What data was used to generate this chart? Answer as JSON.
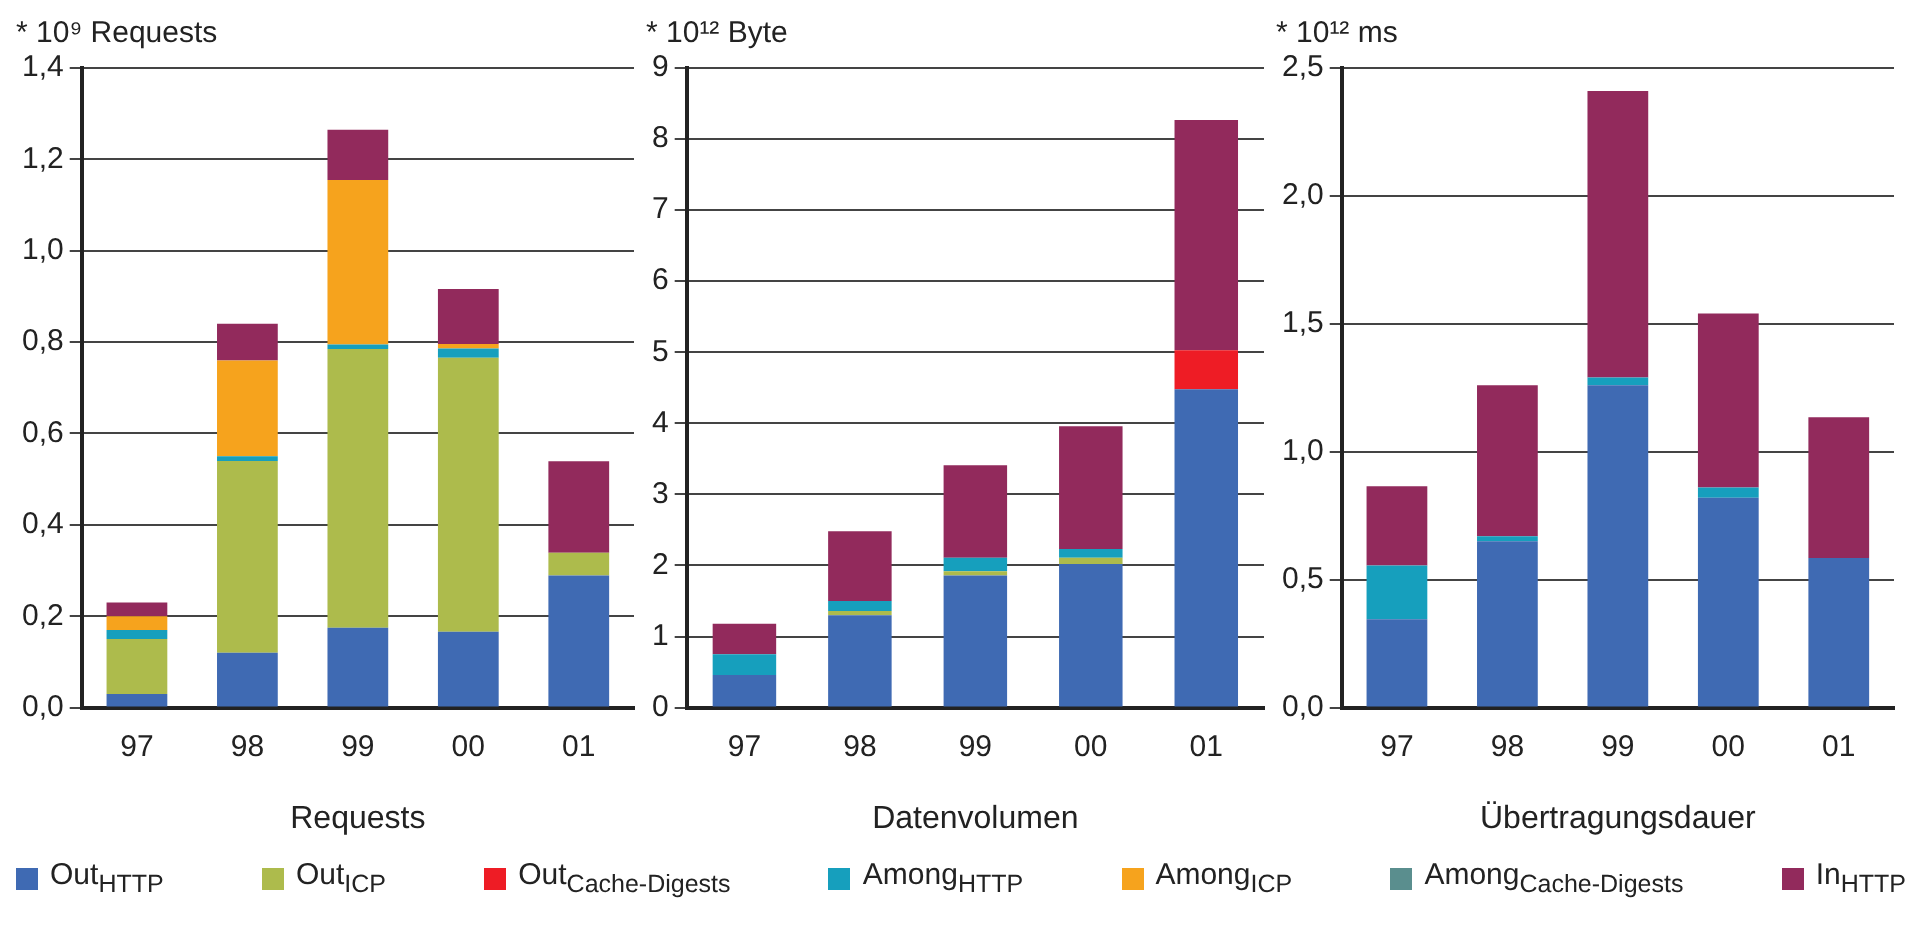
{
  "chart_data": [
    {
      "type": "bar",
      "ylabel": "* 10⁹ Requests",
      "xlabel": "Requests",
      "categories": [
        "97",
        "98",
        "99",
        "00",
        "01"
      ],
      "stacked": true,
      "grid": "y",
      "legend": "bottom",
      "ylim": [
        0,
        1.4
      ],
      "yticks": [
        {
          "value": 0,
          "label": "0,0"
        },
        {
          "value": 0.2,
          "label": "0,2"
        },
        {
          "value": 0.4,
          "label": "0,4"
        },
        {
          "value": 0.6,
          "label": "0,6"
        },
        {
          "value": 0.8,
          "label": "0,8"
        },
        {
          "value": 1.0,
          "label": "1,0"
        },
        {
          "value": 1.2,
          "label": "1,2"
        },
        {
          "value": 1.4,
          "label": "1,4"
        }
      ],
      "series": [
        {
          "name": "Out$_{HTTP}$",
          "color": "#3f6ab3",
          "values": [
            0.03,
            0.12,
            0.175,
            0.166,
            0.289
          ]
        },
        {
          "name": "Out$_{ICP}$",
          "color": "#adbb4c",
          "values": [
            0.12,
            0.42,
            0.61,
            0.6,
            0.05
          ]
        },
        {
          "name": "Out$_{Cache-Digests}$",
          "color": "#ee1c25",
          "values": [
            null,
            null,
            null,
            null,
            null
          ]
        },
        {
          "name": "Among$_{HTTP}$",
          "color": "#169fbd",
          "values": [
            0.02,
            0.01,
            0.01,
            0.02,
            null
          ]
        },
        {
          "name": "Among$_{ICP}$",
          "color": "#f6a31d",
          "values": [
            0.03,
            0.21,
            0.36,
            0.01,
            null
          ]
        },
        {
          "name": "Among$_{Cache-Digests}$",
          "color": "#5a8e8e",
          "values": [
            null,
            null,
            null,
            null,
            null
          ]
        },
        {
          "name": "In$_{HTTP}$",
          "color": "#922a5c",
          "values": [
            0.03,
            0.08,
            0.11,
            0.12,
            0.2
          ]
        }
      ]
    },
    {
      "type": "bar",
      "ylabel": "* 10¹² Byte",
      "xlabel": "Datenvolumen",
      "categories": [
        "97",
        "98",
        "99",
        "00",
        "01"
      ],
      "stacked": true,
      "grid": "y",
      "ylim": [
        0,
        9
      ],
      "yticks": [
        0,
        1,
        2,
        3,
        4,
        5,
        6,
        7,
        8,
        9
      ],
      "series": [
        {
          "color": "#3f6ab3",
          "values": [
            0.46,
            1.3,
            1.86,
            2.02,
            4.48
          ]
        },
        {
          "color": "#adbb4c",
          "values": [
            null,
            0.06,
            0.06,
            0.09,
            null
          ]
        },
        {
          "color": "#ee1c25",
          "values": [
            null,
            null,
            null,
            null,
            0.55
          ]
        },
        {
          "color": "#169fbd",
          "values": [
            0.29,
            0.14,
            0.19,
            0.12,
            null
          ]
        },
        {
          "color": "#922a5c",
          "values": [
            0.43,
            0.98,
            1.3,
            1.73,
            3.24
          ]
        }
      ]
    },
    {
      "type": "bar",
      "ylabel": "* 10¹² ms",
      "xlabel": "Übertragungsdauer",
      "categories": [
        "97",
        "98",
        "99",
        "00",
        "01"
      ],
      "stacked": true,
      "grid": "y",
      "ylim": [
        0,
        2.5
      ],
      "yticks": [
        {
          "value": 0,
          "label": "0,0"
        },
        {
          "value": 0.5,
          "label": "0,5"
        },
        {
          "value": 1.0,
          "label": "1,0"
        },
        {
          "value": 1.5,
          "label": "1,5"
        },
        {
          "value": 2.0,
          "label": "2,0"
        },
        {
          "value": 2.5,
          "label": "2,5"
        }
      ],
      "series": [
        {
          "color": "#3f6ab3",
          "values": [
            0.345,
            0.65,
            1.26,
            0.82,
            0.585
          ]
        },
        {
          "color": "#169fbd",
          "values": [
            0.21,
            0.02,
            0.03,
            0.04,
            null
          ]
        },
        {
          "color": "#922a5c",
          "values": [
            0.31,
            0.59,
            1.12,
            0.68,
            0.55
          ]
        }
      ]
    }
  ]
}
